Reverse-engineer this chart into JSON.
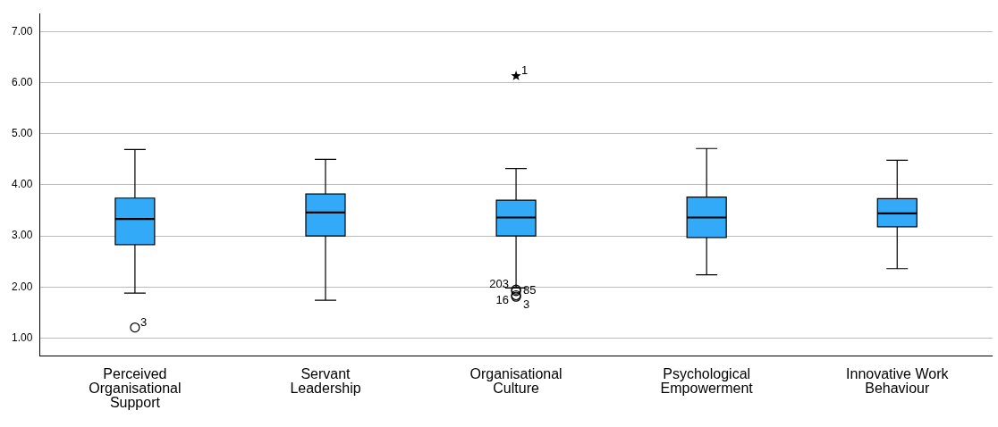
{
  "chart_data": {
    "type": "box",
    "categories": [
      "Perceived Organisational Support",
      "Servant Leadership",
      "Organisational Culture",
      "Psychological Empowerment",
      "Innovative Work Behaviour"
    ],
    "color": "#33aaf7",
    "boxes": [
      {
        "low": 1.88,
        "q1": 2.83,
        "median": 3.33,
        "q3": 3.74,
        "high": 4.69
      },
      {
        "low": 1.74,
        "q1": 3.0,
        "median": 3.46,
        "q3": 3.82,
        "high": 4.5
      },
      {
        "low": 1.98,
        "q1": 3.0,
        "median": 3.36,
        "q3": 3.7,
        "high": 4.32
      },
      {
        "low": 2.24,
        "q1": 2.97,
        "median": 3.36,
        "q3": 3.76,
        "high": 4.71
      },
      {
        "low": 2.36,
        "q1": 3.18,
        "median": 3.44,
        "q3": 3.73,
        "high": 4.48
      }
    ],
    "series": [
      {
        "type": "scatter",
        "marker": "circle",
        "color": "#000000",
        "x": [
          "Perceived Organisational Support",
          "Organisational Culture",
          "Organisational Culture",
          "Organisational Culture",
          "Organisational Culture"
        ],
        "values": [
          1.21,
          1.95,
          1.92,
          1.84,
          1.81
        ]
      },
      {
        "type": "scatter",
        "marker": "star",
        "color": "#000000",
        "x": [
          "Organisational Culture"
        ],
        "values": [
          6.13
        ]
      }
    ],
    "ylim": [
      0.66,
      7.35
    ],
    "yticks": [
      {
        "value": 1,
        "label": "1.00"
      },
      {
        "value": 2,
        "label": "2.00"
      },
      {
        "value": 3,
        "label": "3.00"
      },
      {
        "value": 4,
        "label": "4.00"
      },
      {
        "value": 5,
        "label": "5.00"
      },
      {
        "value": 6,
        "label": "6.00"
      },
      {
        "value": 7,
        "label": "7.00"
      }
    ],
    "grid": "y",
    "annotations": [
      {
        "text": "3",
        "x": "Perceived Organisational Support",
        "y": 1.21
      },
      {
        "text": "1",
        "x": "Organisational Culture",
        "y": 6.13
      },
      {
        "text": "203",
        "x": "Organisational Culture",
        "y": 1.95
      },
      {
        "text": "85",
        "x": "Organisational Culture",
        "y": 1.92
      },
      {
        "text": "16",
        "x": "Organisational Culture",
        "y": 1.84
      },
      {
        "text": "3",
        "x": "Organisational Culture",
        "y": 1.81
      }
    ]
  }
}
